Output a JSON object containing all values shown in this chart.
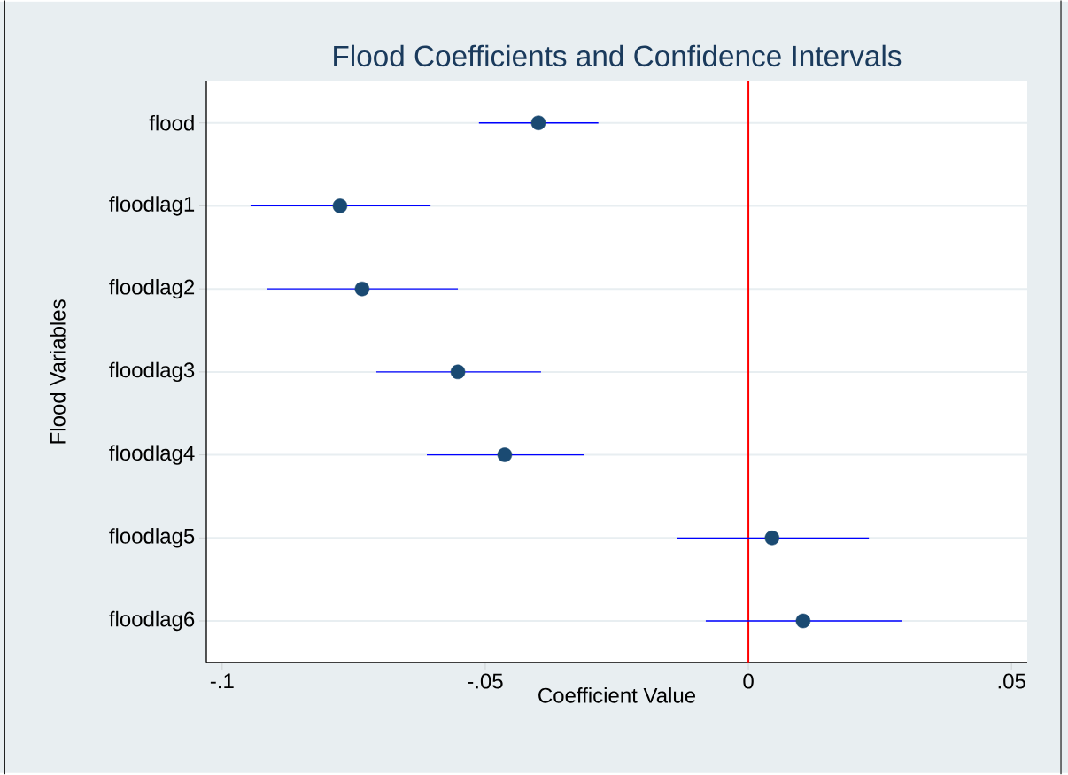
{
  "chart_data": {
    "type": "scatter",
    "orientation": "horizontal",
    "title": "Flood Coefficients and Confidence Intervals",
    "xlabel": "Coefficient Value",
    "ylabel": "Flood Variables",
    "categories": [
      "flood",
      "floodlag1",
      "floodlag2",
      "floodlag3",
      "floodlag4",
      "floodlag5",
      "floodlag6"
    ],
    "series": [
      {
        "color": "#1a4a72",
        "values": [
          -0.0399,
          -0.0776,
          -0.0734,
          -0.0552,
          -0.0463,
          0.0045,
          0.0104
        ],
        "errors": [
          [
            -0.0512,
            -0.0285
          ],
          [
            -0.0946,
            -0.0604
          ],
          [
            -0.0914,
            -0.0552
          ],
          [
            -0.0707,
            -0.0394
          ],
          [
            -0.0611,
            -0.0313
          ],
          [
            -0.0135,
            0.0229
          ],
          [
            -0.0081,
            0.0291
          ]
        ]
      }
    ],
    "xlim": [
      -0.103,
      0.053
    ],
    "xticks": [
      {
        "value": -0.1,
        "label": "-.1"
      },
      {
        "value": -0.05,
        "label": "-.05"
      },
      0,
      {
        "value": 0.05,
        "label": ".05"
      }
    ],
    "ref_lines": [
      {
        "axis": "x",
        "value": 0,
        "color": "#ff0000"
      }
    ],
    "grid": "y",
    "marker": "circle"
  }
}
